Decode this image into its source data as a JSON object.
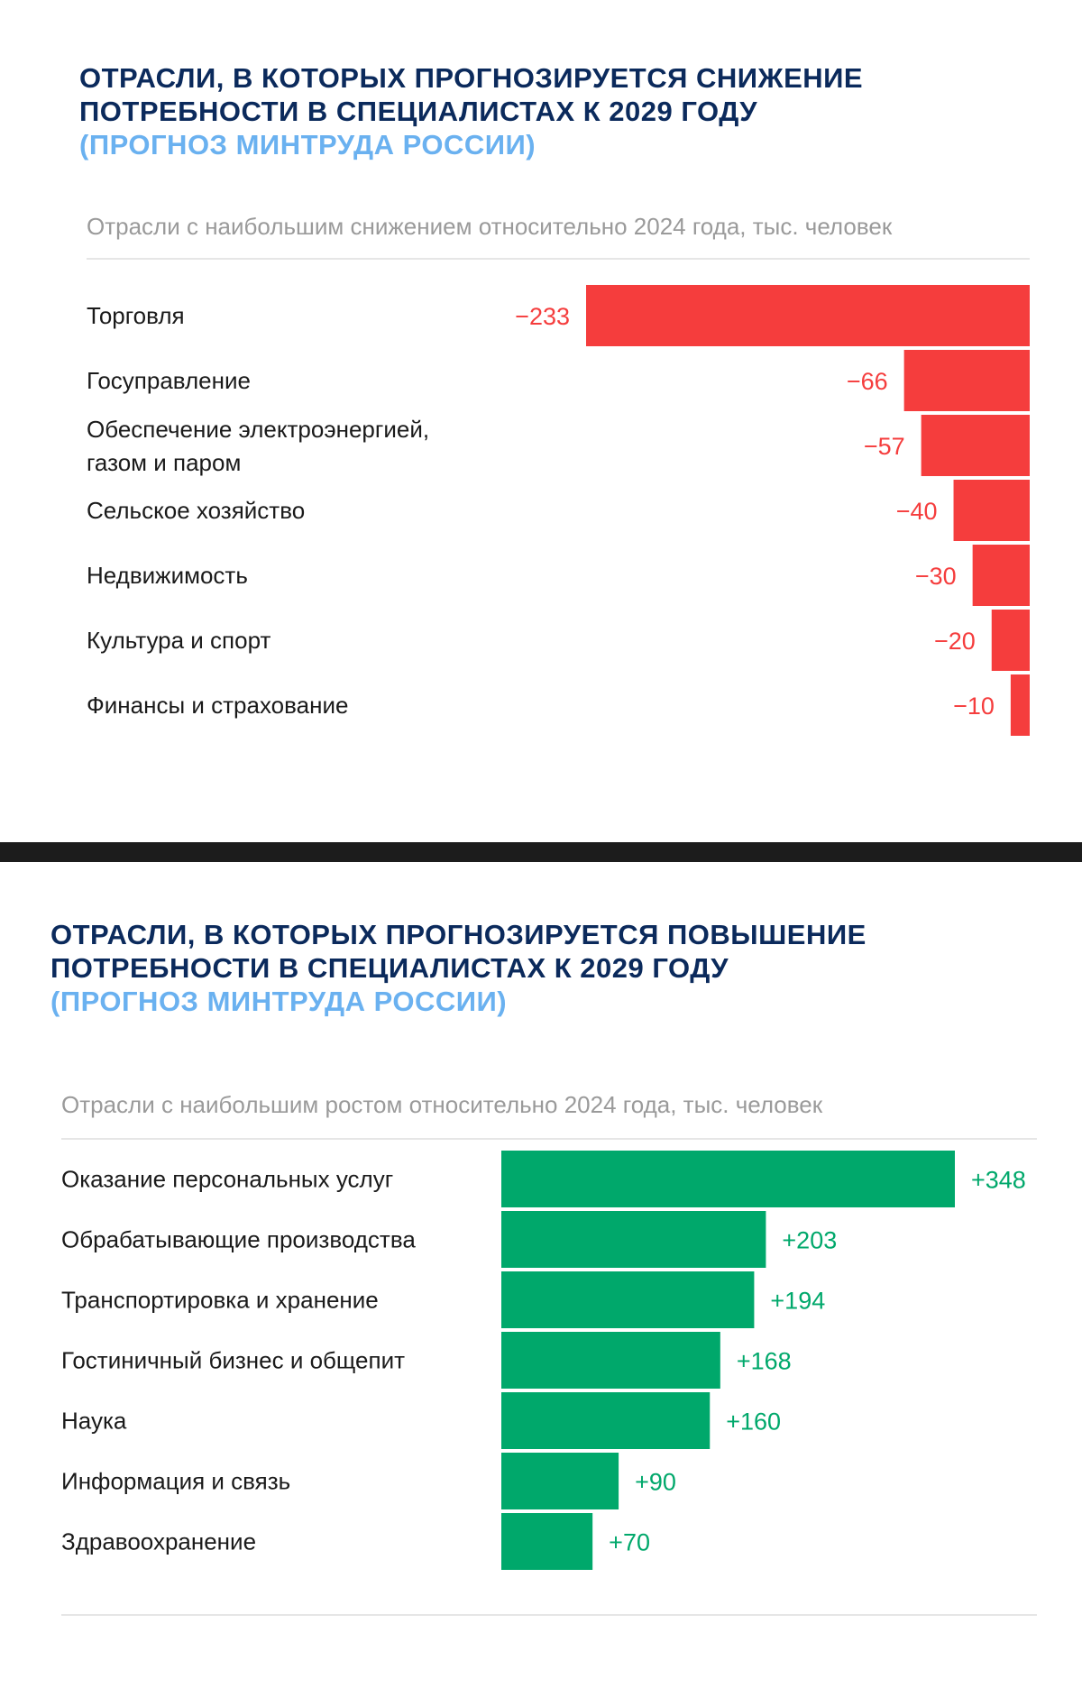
{
  "charts": {
    "decrease": {
      "title_line1": "ОТРАСЛИ, В КОТОРЫХ ПРОГНОЗИРУЕТСЯ СНИЖЕНИЕ",
      "title_line2": "ПОТРЕБНОСТИ В СПЕЦИАЛИСТАХ К 2029 ГОДУ",
      "title_line3": "(ПРОГНОЗ МИНТРУДА РОССИИ)",
      "subtitle": "Отрасли с наибольшим снижением относительно 2024 года, тыс. человек",
      "bar_color": "#f53d3d",
      "value_color": "#f53d3d"
    },
    "increase": {
      "title_line1": "ОТРАСЛИ, В КОТОРЫХ ПРОГНОЗИРУЕТСЯ ПОВЫШЕНИЕ",
      "title_line2": "ПОТРЕБНОСТИ В СПЕЦИАЛИСТАХ К 2029 ГОДУ",
      "title_line3": "(ПРОГНОЗ МИНТРУДА РОССИИ)",
      "subtitle": "Отрасли с наибольшим ростом относительно 2024 года, тыс. человек",
      "bar_color": "#00a86b",
      "value_color": "#00a86b"
    },
    "colors": {
      "title": "#0b2a5c",
      "title_accent": "#6ab1f0",
      "subtitle": "#9a9a9a"
    }
  },
  "chart_data": [
    {
      "type": "bar",
      "orientation": "horizontal",
      "title": "ОТРАСЛИ, В КОТОРЫХ ПРОГНОЗИРУЕТСЯ СНИЖЕНИЕ ПОТРЕБНОСТИ В СПЕЦИАЛИСТАХ К 2029 ГОДУ (ПРОГНОЗ МИНТРУДА РОССИИ)",
      "subtitle": "Отрасли с наибольшим снижением относительно 2024 года, тыс. человек",
      "categories": [
        [
          "Торговля"
        ],
        [
          "Госуправление"
        ],
        [
          "Обеспечение электроэнергией,",
          "газом и паром"
        ],
        [
          "Сельское хозяйство"
        ],
        [
          "Недвижимость"
        ],
        [
          "Культура и спорт"
        ],
        [
          "Финансы и страхование"
        ]
      ],
      "values": [
        -233,
        -66,
        -57,
        -40,
        -30,
        -20,
        -10
      ],
      "value_labels": [
        "−233",
        "−66",
        "−57",
        "−40",
        "−30",
        "−20",
        "−10"
      ],
      "xlim": [
        -233,
        0
      ],
      "grid": false,
      "legend": "none"
    },
    {
      "type": "bar",
      "orientation": "horizontal",
      "title": "ОТРАСЛИ, В КОТОРЫХ ПРОГНОЗИРУЕТСЯ ПОВЫШЕНИЕ ПОТРЕБНОСТИ В СПЕЦИАЛИСТАХ К 2029 ГОДУ (ПРОГНОЗ МИНТРУДА РОССИИ)",
      "subtitle": "Отрасли с наибольшим ростом относительно 2024 года, тыс. человек",
      "categories": [
        [
          "Оказание персональных услуг"
        ],
        [
          "Обрабатывающие производства"
        ],
        [
          "Транспортировка и хранение"
        ],
        [
          "Гостиничный бизнес и общепит"
        ],
        [
          "Наука"
        ],
        [
          "Информация и связь"
        ],
        [
          "Здравоохранение"
        ]
      ],
      "values": [
        348,
        203,
        194,
        168,
        160,
        90,
        70
      ],
      "value_labels": [
        "+348",
        "+203",
        "+194",
        "+168",
        "+160",
        "+90",
        "+70"
      ],
      "xlim": [
        0,
        348
      ],
      "grid": false,
      "legend": "none"
    }
  ]
}
